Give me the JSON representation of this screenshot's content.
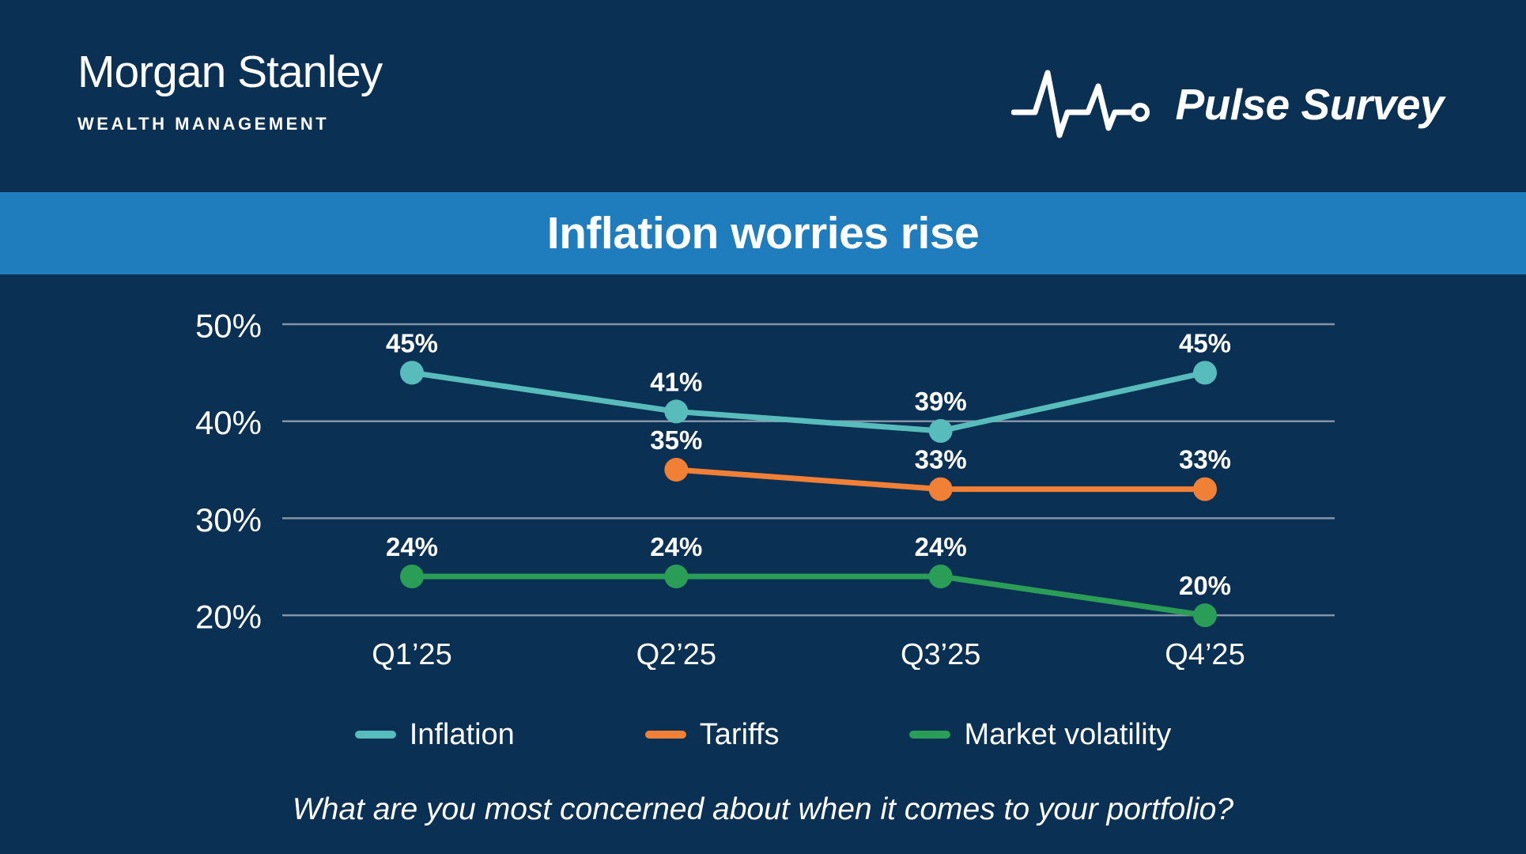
{
  "header": {
    "logo_primary": "Morgan Stanley",
    "logo_secondary": "WEALTH MANAGEMENT",
    "program_name": "Pulse Survey",
    "program_icon": "heartbeat-ekg-icon"
  },
  "banner": {
    "text": "Inflation worries rise"
  },
  "colors": {
    "background": "#0A3054",
    "banner_bg": "#1F7DBE",
    "grid_line": "#8295A7",
    "text": "#FFFFFF",
    "inflation": "#58BCBC",
    "tariffs": "#F08036",
    "market_volatility": "#2A9D57"
  },
  "chart_data": {
    "type": "line",
    "title": "Inflation worries rise",
    "categories": [
      "Q1’25",
      "Q2’25",
      "Q3’25",
      "Q4’25"
    ],
    "series": [
      {
        "name": "Inflation",
        "color": "#58BCBC",
        "values": [
          45,
          41,
          39,
          45
        ]
      },
      {
        "name": "Tariffs",
        "color": "#F08036",
        "values": [
          null,
          35,
          33,
          33
        ]
      },
      {
        "name": "Market volatility",
        "color": "#2A9D57",
        "values": [
          24,
          24,
          24,
          20
        ]
      }
    ],
    "value_suffix": "%",
    "y_ticks": [
      50,
      40,
      30,
      20
    ],
    "y_tick_labels": [
      "50%",
      "40%",
      "30%",
      "20%"
    ],
    "ylim": [
      18,
      53
    ],
    "grid": true,
    "legend_position": "bottom"
  },
  "caption": {
    "text": "What are you most concerned about when it comes to your portfolio?"
  }
}
